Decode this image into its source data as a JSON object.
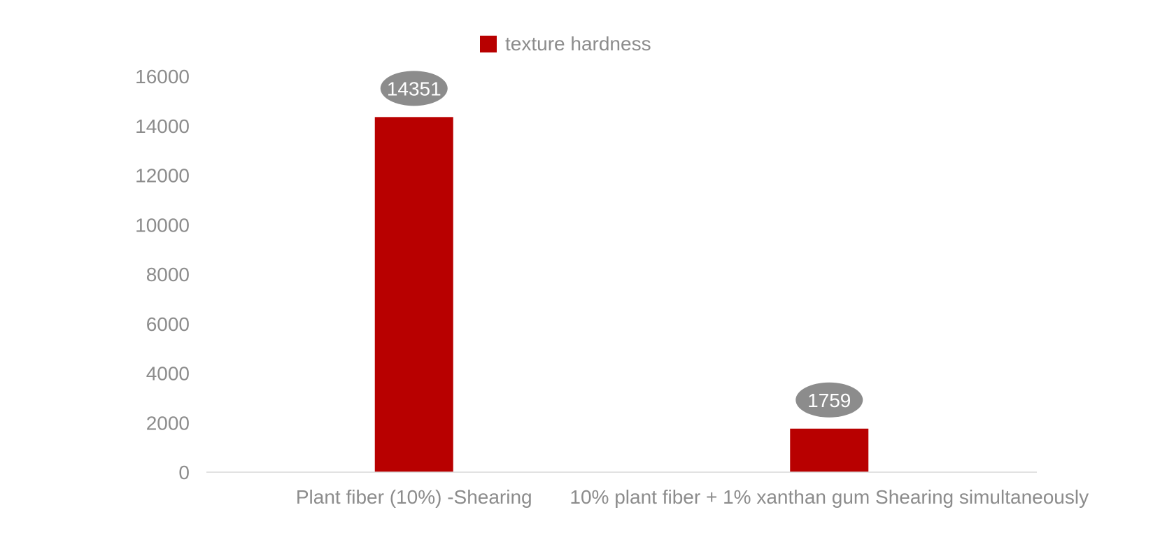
{
  "chart_data": {
    "type": "bar",
    "categories": [
      "Plant fiber (10%) -Shearing",
      "10% plant fiber + 1% xanthan gum Shearing simultaneously"
    ],
    "series": [
      {
        "name": "texture hardness",
        "values": [
          14351,
          1759
        ],
        "color": "#b80000"
      }
    ],
    "data_labels": [
      "14351",
      "1759"
    ],
    "ylim": [
      0,
      16000
    ],
    "yticks": [
      0,
      2000,
      4000,
      6000,
      8000,
      10000,
      12000,
      14000,
      16000
    ],
    "title": "",
    "xlabel": "",
    "ylabel": "",
    "grid": false,
    "legend": "top-center",
    "label_bubble_color": "#8c8c8c",
    "axis_color": "#d9d9d9",
    "text_color": "#8c8c8c"
  }
}
